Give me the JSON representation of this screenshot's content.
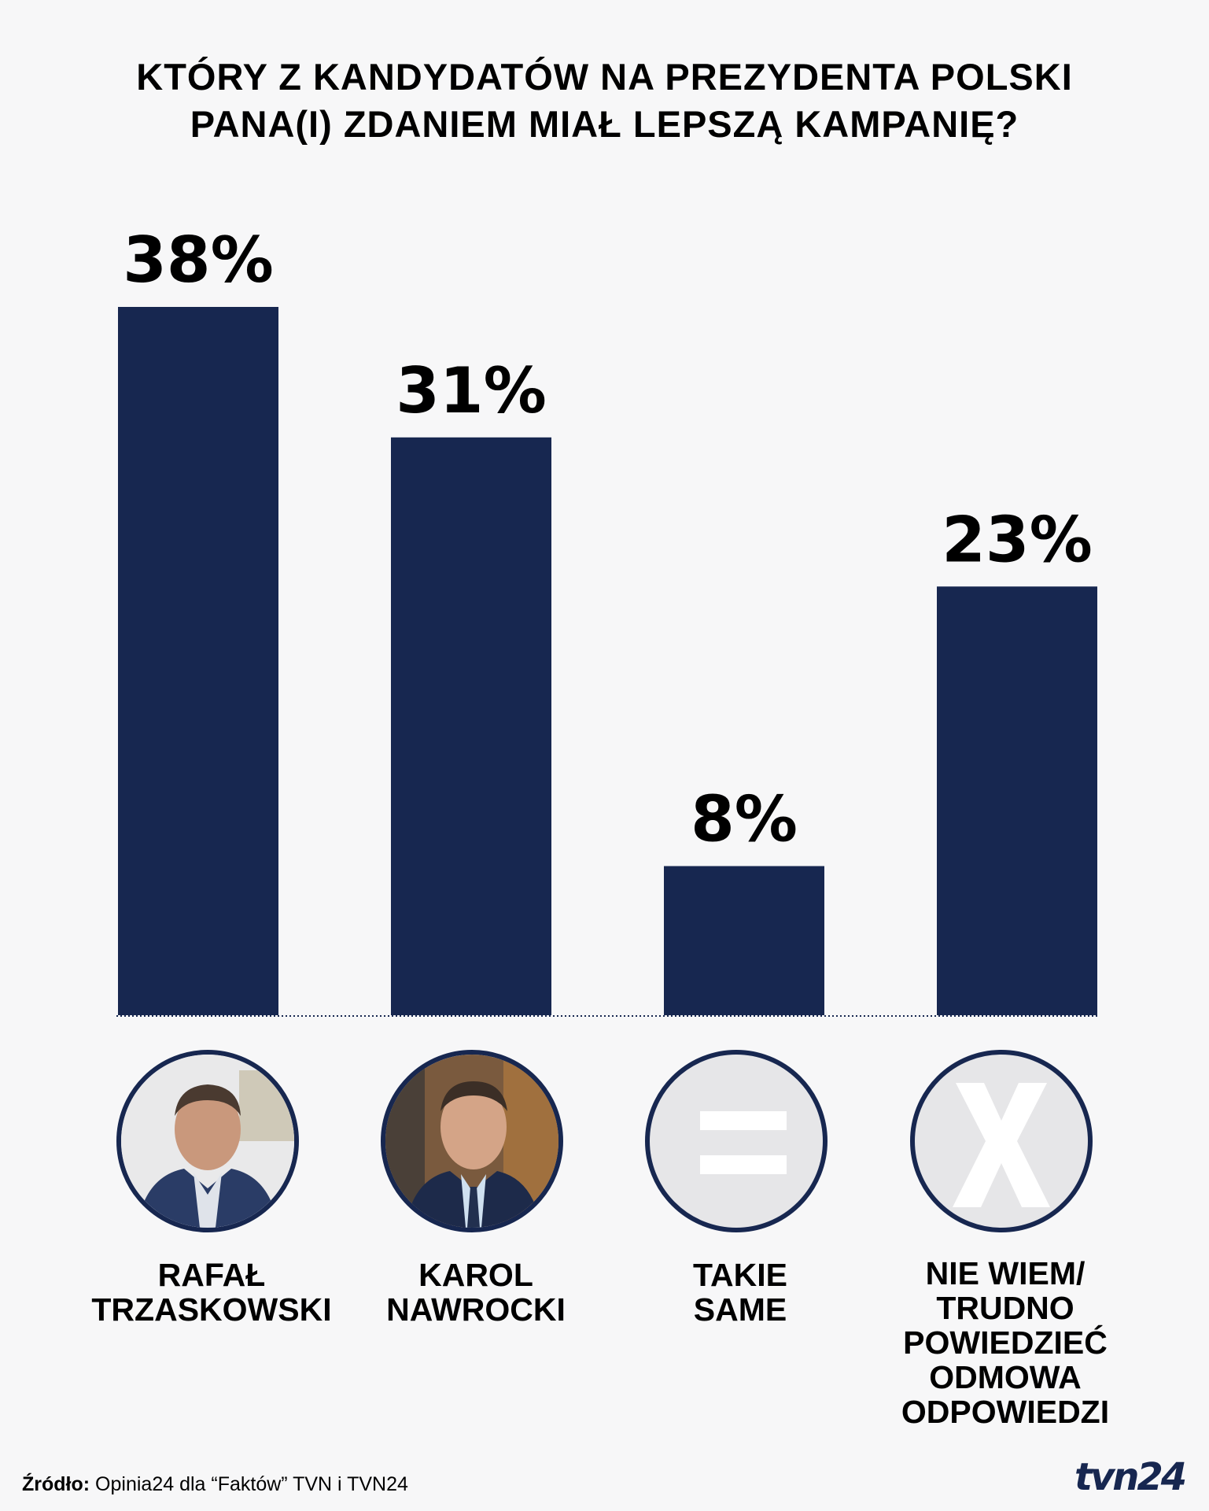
{
  "title": {
    "line1": "KTÓRY Z KANDYDATÓW NA PREZYDENTA POLSKI",
    "line2": "PANA(I) ZDANIEM MIAŁ LEPSZĄ KAMPANIĘ?"
  },
  "chart_data": {
    "type": "bar",
    "categories": [
      "RAFAŁ\nTRZASKOWSKI",
      "KAROL\nNAWROCKI",
      "TAKIE\nSAME",
      "NIE WIEM/\nTRUDNO\nPOWIEDZIEĆ\nODMOWA\nODPOWIEDZI"
    ],
    "values": [
      38,
      31,
      8,
      23
    ],
    "value_labels": [
      "38%",
      "31%",
      "8%",
      "23%"
    ],
    "ylim": [
      0,
      38
    ],
    "grid": false,
    "bar_color": "#172750"
  },
  "icons": [
    "photo-trzaskowski",
    "photo-nawrocki",
    "equals-icon",
    "x-icon"
  ],
  "footer": {
    "source_label": "Źródło:",
    "source_text": "Opinia24 dla “Faktów” TVN i TVN24",
    "logo_text": "tvn24"
  }
}
